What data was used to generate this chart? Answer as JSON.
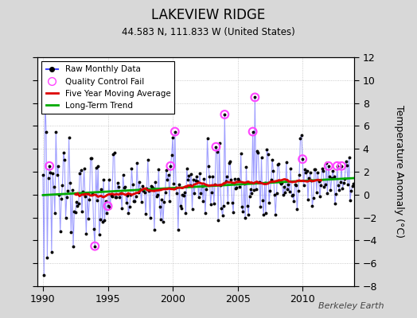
{
  "title": "LAKEVIEW RIDGE",
  "subtitle": "44.583 N, 111.833 W (United States)",
  "ylabel": "Temperature Anomaly (°C)",
  "watermark": "Berkeley Earth",
  "xlim": [
    1989.583,
    2014.0
  ],
  "ylim": [
    -8,
    12
  ],
  "yticks_right": [
    -8,
    -6,
    -4,
    -2,
    0,
    2,
    4,
    6,
    8,
    10,
    12
  ],
  "xticks": [
    1990,
    1995,
    2000,
    2005,
    2010
  ],
  "bg_color": "#d8d8d8",
  "plot_bg": "#ffffff",
  "raw_color": "#4444ff",
  "raw_line_color": "#7777ff",
  "ma_color": "#dd0000",
  "trend_color": "#00aa00",
  "qc_color": "#ff44ff",
  "seed": 137
}
